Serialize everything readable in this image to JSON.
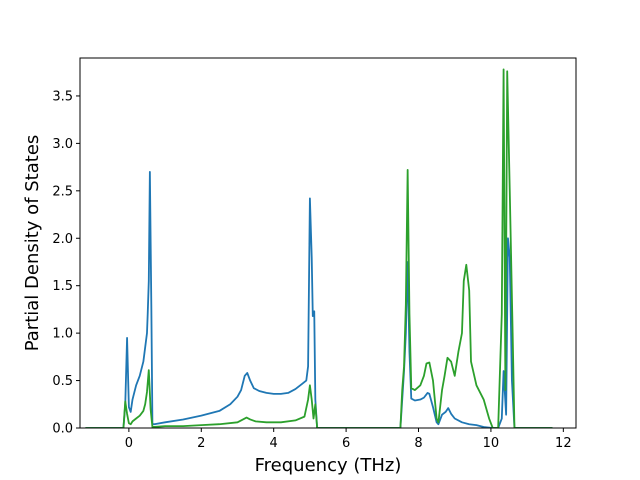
{
  "chart_data": {
    "type": "line",
    "title": "",
    "xlabel": "Frequency (THz)",
    "ylabel": "Partial Density of States",
    "xlim": [
      -1.35,
      12.35
    ],
    "ylim": [
      0,
      3.9
    ],
    "xticks": [
      0,
      2,
      4,
      6,
      8,
      10,
      12
    ],
    "yticks": [
      0.0,
      0.5,
      1.0,
      1.5,
      2.0,
      2.5,
      3.0,
      3.5
    ],
    "xtick_labels": [
      "0",
      "2",
      "4",
      "6",
      "8",
      "10",
      "12"
    ],
    "ytick_labels": [
      "0.0",
      "0.5",
      "1.0",
      "1.5",
      "2.0",
      "2.5",
      "3.0",
      "3.5"
    ],
    "grid": false,
    "legend": "none",
    "series": [
      {
        "color": "#1f77b4",
        "points": [
          [
            -1.2,
            0
          ],
          [
            -0.15,
            0
          ],
          [
            -0.1,
            0.25
          ],
          [
            -0.05,
            0.95
          ],
          [
            0.0,
            0.22
          ],
          [
            0.05,
            0.17
          ],
          [
            0.1,
            0.3
          ],
          [
            0.2,
            0.45
          ],
          [
            0.3,
            0.55
          ],
          [
            0.4,
            0.7
          ],
          [
            0.45,
            0.85
          ],
          [
            0.5,
            1.0
          ],
          [
            0.52,
            1.2
          ],
          [
            0.55,
            1.55
          ],
          [
            0.58,
            2.7
          ],
          [
            0.62,
            1.3
          ],
          [
            0.65,
            0.04
          ],
          [
            0.7,
            0.04
          ],
          [
            1.0,
            0.06
          ],
          [
            1.5,
            0.09
          ],
          [
            2.0,
            0.13
          ],
          [
            2.5,
            0.18
          ],
          [
            2.8,
            0.25
          ],
          [
            3.0,
            0.33
          ],
          [
            3.1,
            0.4
          ],
          [
            3.2,
            0.55
          ],
          [
            3.27,
            0.58
          ],
          [
            3.35,
            0.5
          ],
          [
            3.45,
            0.42
          ],
          [
            3.6,
            0.39
          ],
          [
            3.8,
            0.37
          ],
          [
            4.0,
            0.36
          ],
          [
            4.2,
            0.36
          ],
          [
            4.4,
            0.37
          ],
          [
            4.6,
            0.41
          ],
          [
            4.8,
            0.47
          ],
          [
            4.9,
            0.5
          ],
          [
            4.95,
            0.65
          ],
          [
            5.0,
            2.42
          ],
          [
            5.05,
            1.8
          ],
          [
            5.08,
            1.18
          ],
          [
            5.12,
            1.23
          ],
          [
            5.15,
            0.3
          ],
          [
            5.2,
            0
          ],
          [
            7.5,
            0
          ],
          [
            7.55,
            0.3
          ],
          [
            7.6,
            0.6
          ],
          [
            7.65,
            1.0
          ],
          [
            7.7,
            1.75
          ],
          [
            7.75,
            0.8
          ],
          [
            7.8,
            0.31
          ],
          [
            7.9,
            0.29
          ],
          [
            8.05,
            0.3
          ],
          [
            8.15,
            0.32
          ],
          [
            8.25,
            0.37
          ],
          [
            8.3,
            0.36
          ],
          [
            8.4,
            0.22
          ],
          [
            8.5,
            0.06
          ],
          [
            8.55,
            0.04
          ],
          [
            8.65,
            0.14
          ],
          [
            8.75,
            0.17
          ],
          [
            8.82,
            0.21
          ],
          [
            8.9,
            0.15
          ],
          [
            9.0,
            0.1
          ],
          [
            9.2,
            0.06
          ],
          [
            9.4,
            0.04
          ],
          [
            9.6,
            0.03
          ],
          [
            9.8,
            0.01
          ],
          [
            10.05,
            0
          ],
          [
            10.2,
            0
          ],
          [
            10.3,
            0.1
          ],
          [
            10.35,
            0.6
          ],
          [
            10.42,
            0.14
          ],
          [
            10.47,
            2.0
          ],
          [
            10.52,
            1.8
          ],
          [
            10.58,
            0.5
          ],
          [
            10.65,
            0
          ],
          [
            11.7,
            0
          ]
        ]
      },
      {
        "color": "#2ca02c",
        "points": [
          [
            -1.2,
            0
          ],
          [
            -0.15,
            0
          ],
          [
            -0.1,
            0.28
          ],
          [
            -0.05,
            0.15
          ],
          [
            0.0,
            0.05
          ],
          [
            0.05,
            0.04
          ],
          [
            0.1,
            0.07
          ],
          [
            0.2,
            0.1
          ],
          [
            0.3,
            0.13
          ],
          [
            0.4,
            0.18
          ],
          [
            0.45,
            0.25
          ],
          [
            0.5,
            0.38
          ],
          [
            0.55,
            0.61
          ],
          [
            0.6,
            0.2
          ],
          [
            0.65,
            0.01
          ],
          [
            1.0,
            0.02
          ],
          [
            1.5,
            0.02
          ],
          [
            2.0,
            0.03
          ],
          [
            2.5,
            0.04
          ],
          [
            3.0,
            0.06
          ],
          [
            3.1,
            0.08
          ],
          [
            3.25,
            0.11
          ],
          [
            3.35,
            0.09
          ],
          [
            3.5,
            0.07
          ],
          [
            3.8,
            0.06
          ],
          [
            4.2,
            0.06
          ],
          [
            4.6,
            0.08
          ],
          [
            4.85,
            0.12
          ],
          [
            4.95,
            0.3
          ],
          [
            5.0,
            0.45
          ],
          [
            5.05,
            0.3
          ],
          [
            5.1,
            0.1
          ],
          [
            5.15,
            0.25
          ],
          [
            5.2,
            0
          ],
          [
            7.5,
            0
          ],
          [
            7.55,
            0.4
          ],
          [
            7.6,
            0.65
          ],
          [
            7.65,
            1.3
          ],
          [
            7.7,
            2.72
          ],
          [
            7.75,
            1.2
          ],
          [
            7.8,
            0.42
          ],
          [
            7.9,
            0.4
          ],
          [
            8.05,
            0.45
          ],
          [
            8.15,
            0.55
          ],
          [
            8.22,
            0.68
          ],
          [
            8.3,
            0.69
          ],
          [
            8.4,
            0.5
          ],
          [
            8.5,
            0.1
          ],
          [
            8.55,
            0.06
          ],
          [
            8.65,
            0.4
          ],
          [
            8.72,
            0.55
          ],
          [
            8.8,
            0.74
          ],
          [
            8.9,
            0.7
          ],
          [
            9.0,
            0.55
          ],
          [
            9.1,
            0.8
          ],
          [
            9.2,
            1.0
          ],
          [
            9.25,
            1.55
          ],
          [
            9.32,
            1.72
          ],
          [
            9.4,
            1.45
          ],
          [
            9.45,
            0.7
          ],
          [
            9.6,
            0.45
          ],
          [
            9.8,
            0.3
          ],
          [
            9.95,
            0.1
          ],
          [
            10.05,
            0
          ],
          [
            10.2,
            0
          ],
          [
            10.3,
            1.2
          ],
          [
            10.35,
            3.78
          ],
          [
            10.4,
            0.4
          ],
          [
            10.45,
            3.76
          ],
          [
            10.52,
            2.5
          ],
          [
            10.6,
            1.0
          ],
          [
            10.65,
            0
          ],
          [
            11.7,
            0
          ]
        ]
      }
    ]
  }
}
